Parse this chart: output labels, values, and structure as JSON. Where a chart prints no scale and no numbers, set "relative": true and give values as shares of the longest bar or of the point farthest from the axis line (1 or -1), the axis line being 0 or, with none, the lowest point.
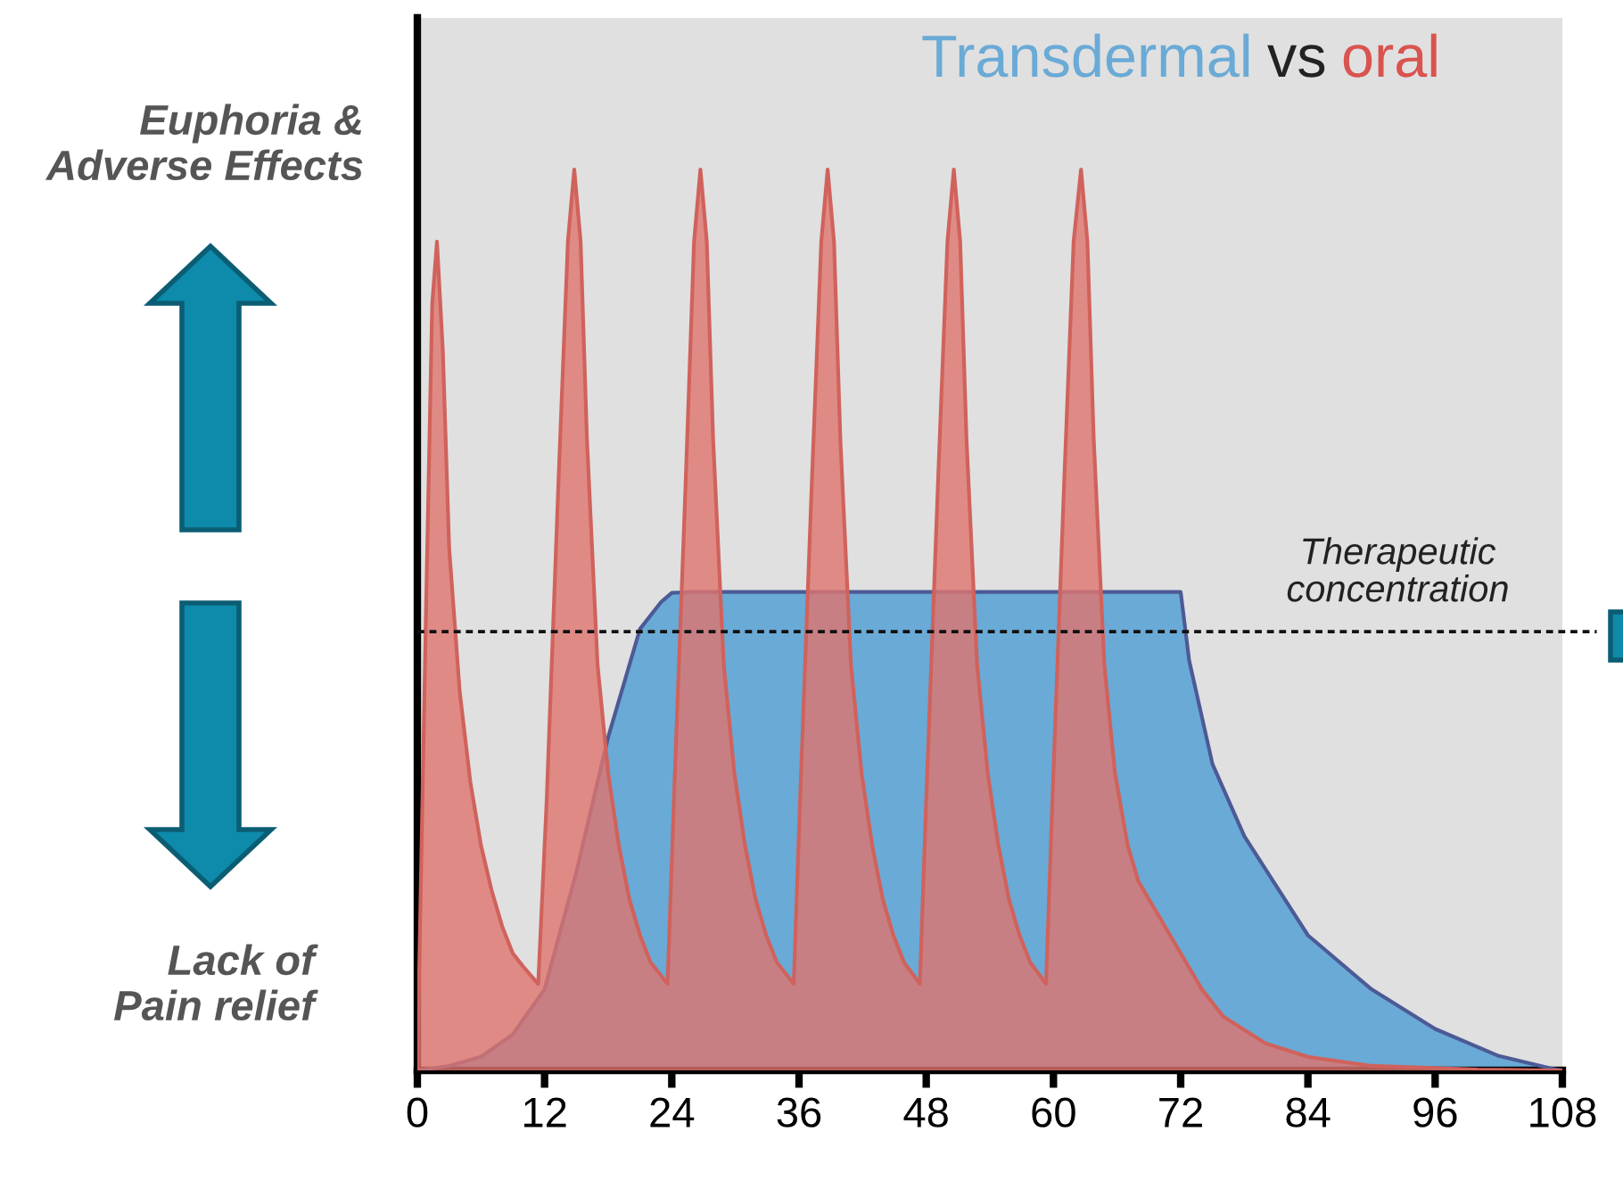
{
  "chart_data": {
    "type": "area",
    "relative": true,
    "xlim": [
      0,
      108
    ],
    "xticks": [
      0,
      12,
      24,
      36,
      48,
      60,
      72,
      84,
      96,
      108
    ],
    "tick_labels": "x",
    "grid": false,
    "legend": false,
    "series": [
      {
        "name": "Transdermal",
        "color": "#6aaad6",
        "x": [
          0,
          3,
          6,
          9,
          12,
          15,
          18,
          21,
          23,
          24,
          26,
          72,
          72.8,
          75,
          78,
          84,
          90,
          96,
          102,
          107,
          108
        ],
        "values": [
          0,
          0.005,
          0.015,
          0.04,
          0.09,
          0.22,
          0.37,
          0.49,
          0.52,
          0.53,
          0.531,
          0.531,
          0.455,
          0.34,
          0.26,
          0.15,
          0.09,
          0.046,
          0.016,
          0.002,
          0
        ]
      },
      {
        "name": "oral",
        "color": "#e0746e",
        "x": [
          0,
          0.8,
          1.4,
          1.85,
          2.4,
          3,
          4,
          5,
          6,
          7,
          8,
          9,
          10,
          11.4,
          12.2,
          13.3,
          14.2,
          14.8,
          15.4,
          16,
          17,
          18,
          19,
          20,
          21,
          22,
          23.6,
          24.2,
          25.3,
          26.1,
          26.7,
          27.3,
          27.9,
          28.9,
          29.9,
          30.9,
          31.9,
          32.9,
          33.9,
          35.5,
          36.1,
          37.2,
          38.1,
          38.7,
          39.3,
          39.9,
          40.9,
          41.9,
          42.9,
          43.9,
          44.9,
          45.9,
          47.4,
          48.0,
          49.1,
          50.0,
          50.6,
          51.2,
          51.8,
          52.8,
          53.8,
          54.8,
          55.8,
          56.8,
          57.8,
          59.3,
          59.9,
          61.0,
          61.9,
          62.6,
          63.2,
          63.8,
          64.8,
          65.8,
          67,
          68,
          70,
          72,
          74,
          76,
          80,
          84,
          90,
          100,
          108
        ],
        "values": [
          0,
          0.5,
          0.85,
          0.92,
          0.8,
          0.58,
          0.42,
          0.32,
          0.25,
          0.2,
          0.16,
          0.13,
          0.115,
          0.096,
          0.3,
          0.65,
          0.92,
          1.0,
          0.92,
          0.7,
          0.45,
          0.33,
          0.25,
          0.19,
          0.15,
          0.12,
          0.096,
          0.3,
          0.65,
          0.92,
          1.0,
          0.92,
          0.7,
          0.45,
          0.33,
          0.25,
          0.19,
          0.15,
          0.12,
          0.096,
          0.3,
          0.65,
          0.92,
          1.0,
          0.92,
          0.7,
          0.45,
          0.33,
          0.25,
          0.19,
          0.15,
          0.12,
          0.096,
          0.3,
          0.65,
          0.92,
          1.0,
          0.92,
          0.7,
          0.45,
          0.33,
          0.25,
          0.19,
          0.15,
          0.12,
          0.096,
          0.3,
          0.65,
          0.92,
          1.0,
          0.92,
          0.7,
          0.45,
          0.33,
          0.25,
          0.21,
          0.17,
          0.13,
          0.09,
          0.06,
          0.03,
          0.015,
          0.005,
          0.001,
          0
        ]
      }
    ],
    "ref_lines": [
      {
        "axis": "y",
        "value": 0.487,
        "label": "Therapeutic concentration",
        "line_style": "dotted",
        "color": "#111111"
      }
    ],
    "annotations": [
      "vs",
      "Euphoria & Adverse Effects",
      "Lack of Pain relief"
    ]
  }
}
